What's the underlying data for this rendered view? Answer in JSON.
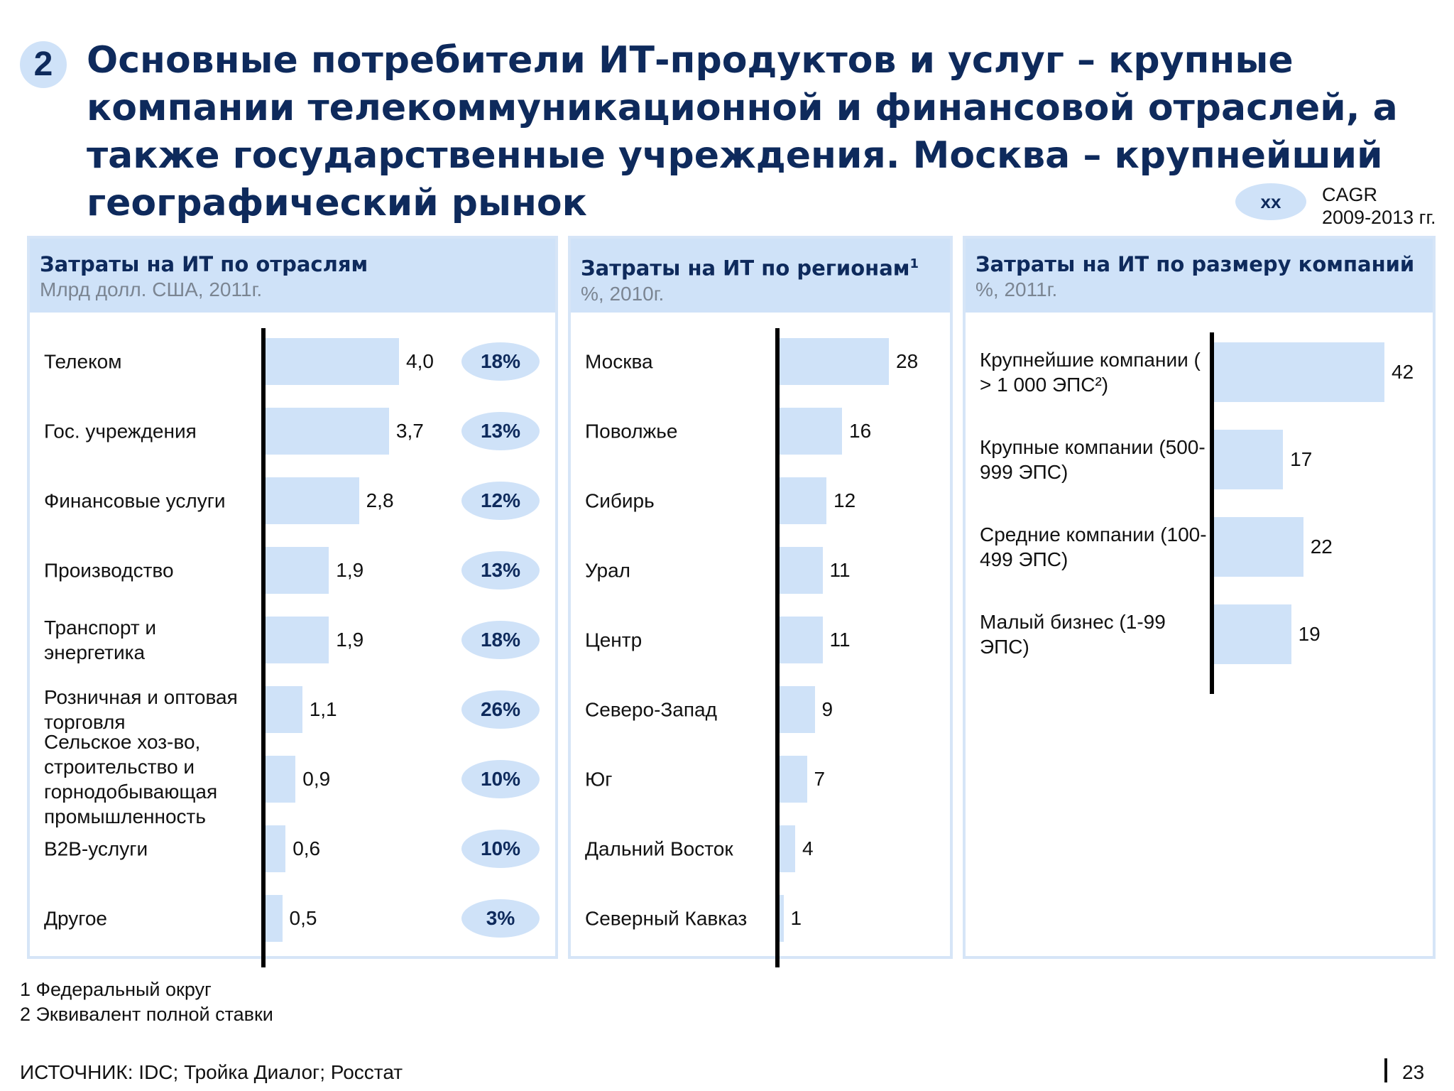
{
  "header": {
    "badge": "2",
    "title": "Основные потребители ИТ-продуктов и услуг – крупные компании телекоммуникационной и финансовой отраслей, а также государственные учреждения. Москва – крупнейший географический рынок"
  },
  "legend": {
    "ellipse_label": "xx",
    "text_line1": "CAGR",
    "text_line2": "2009-2013 гг."
  },
  "chart_data": [
    {
      "type": "bar",
      "orientation": "horizontal",
      "title": "Затраты на ИТ по отраслям",
      "subtitle": "Млрд долл. США, 2011г.",
      "categories": [
        "Телеком",
        "Гос. учреждения",
        "Финансовые услуги",
        "Производство",
        "Транспорт и энергетика",
        "Розничная и оптовая торговля",
        "Сельское хоз-во, строительство и горнодобывающая промышленность",
        "B2B-услуги",
        "Другое"
      ],
      "values": [
        4.0,
        3.7,
        2.8,
        1.9,
        1.9,
        1.1,
        0.9,
        0.6,
        0.5
      ],
      "value_labels": [
        "4,0",
        "3,7",
        "2,8",
        "1,9",
        "1,9",
        "1,1",
        "0,9",
        "0,6",
        "0,5"
      ],
      "cagr": [
        "18%",
        "13%",
        "12%",
        "13%",
        "18%",
        "26%",
        "10%",
        "10%",
        "3%"
      ],
      "xlim": [
        0,
        4.0
      ]
    },
    {
      "type": "bar",
      "orientation": "horizontal",
      "title": "Затраты на ИТ по регионам",
      "title_sup": "1",
      "subtitle": "%, 2010г.",
      "categories": [
        "Москва",
        "Поволжье",
        "Сибирь",
        "Урал",
        "Центр",
        "Северо-Запад",
        "Юг",
        "Дальний Восток",
        "Северный Кавказ"
      ],
      "values": [
        28,
        16,
        12,
        11,
        11,
        9,
        7,
        4,
        1
      ],
      "value_labels": [
        "28",
        "16",
        "12",
        "11",
        "11",
        "9",
        "7",
        "4",
        "1"
      ],
      "xlim": [
        0,
        28
      ]
    },
    {
      "type": "bar",
      "orientation": "horizontal",
      "title": "Затраты на ИТ по размеру компаний",
      "subtitle": "%, 2011г.",
      "categories": [
        "Крупнейшие компании ( > 1 000 ЭПС²)",
        "Крупные компании (500-999 ЭПС)",
        "Средние компании (100-499 ЭПС)",
        "Малый бизнес (1-99 ЭПС)"
      ],
      "values": [
        42,
        17,
        22,
        19
      ],
      "value_labels": [
        "42",
        "17",
        "22",
        "19"
      ],
      "xlim": [
        0,
        42
      ]
    }
  ],
  "footnotes": [
    "1 Федеральный округ",
    "2 Эквивалент полной ставки"
  ],
  "source": "ИСТОЧНИК: IDC; Тройка Диалог; Росстат",
  "page_number": "23"
}
